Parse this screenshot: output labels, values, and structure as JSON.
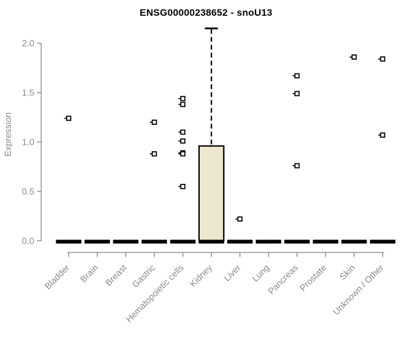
{
  "title": "ENSG00000238652 - snoU13",
  "colors": {
    "axis": "#8a8a8a",
    "tick_label": "#8a8a8a",
    "title": "#000000",
    "box_fill": "#ede7cd",
    "box_stroke": "#000000",
    "zero_bar": "#000000",
    "outlier_stroke": "#000000",
    "outlier_fill": "#ffffff",
    "background": "#ffffff"
  },
  "chart_data": {
    "type": "boxplot",
    "title": "ENSG00000238652 - snoU13",
    "xlabel": "",
    "ylabel": "Expression",
    "ylim": [
      0,
      2.15
    ],
    "yticks": [
      "0.0",
      "0.5",
      "1.0",
      "1.5",
      "2.0"
    ],
    "grid": false,
    "legend": "none",
    "categories": [
      "Bladder",
      "Brain",
      "Breast",
      "Gastric",
      "Hematopoietic cells",
      "Kidney",
      "Liver",
      "Lung",
      "Pancreas",
      "Prostate",
      "Skin",
      "Unknown / Other"
    ],
    "series": [
      {
        "name": "Bladder",
        "median": 0,
        "q1": 0,
        "q3": 0,
        "whisker_low": 0,
        "whisker_high": 0,
        "outliers": [
          1.24
        ]
      },
      {
        "name": "Brain",
        "median": 0,
        "q1": 0,
        "q3": 0,
        "whisker_low": 0,
        "whisker_high": 0,
        "outliers": []
      },
      {
        "name": "Breast",
        "median": 0,
        "q1": 0,
        "q3": 0,
        "whisker_low": 0,
        "whisker_high": 0,
        "outliers": []
      },
      {
        "name": "Gastric",
        "median": 0,
        "q1": 0,
        "q3": 0,
        "whisker_low": 0,
        "whisker_high": 0,
        "outliers": [
          1.2,
          0.88
        ]
      },
      {
        "name": "Hematopoietic cells",
        "median": 0,
        "q1": 0,
        "q3": 0,
        "whisker_low": 0,
        "whisker_high": 0,
        "outliers": [
          1.44,
          1.38,
          1.1,
          1.01,
          0.89,
          0.88,
          0.55
        ]
      },
      {
        "name": "Kidney",
        "median": 0,
        "q1": 0,
        "q3": 0.96,
        "whisker_low": 0,
        "whisker_high": 2.15,
        "outliers": []
      },
      {
        "name": "Liver",
        "median": 0,
        "q1": 0,
        "q3": 0,
        "whisker_low": 0,
        "whisker_high": 0,
        "outliers": [
          0.22
        ]
      },
      {
        "name": "Lung",
        "median": 0,
        "q1": 0,
        "q3": 0,
        "whisker_low": 0,
        "whisker_high": 0,
        "outliers": []
      },
      {
        "name": "Pancreas",
        "median": 0,
        "q1": 0,
        "q3": 0,
        "whisker_low": 0,
        "whisker_high": 0,
        "outliers": [
          1.67,
          1.49,
          0.76
        ]
      },
      {
        "name": "Prostate",
        "median": 0,
        "q1": 0,
        "q3": 0,
        "whisker_low": 0,
        "whisker_high": 0,
        "outliers": []
      },
      {
        "name": "Skin",
        "median": 0,
        "q1": 0,
        "q3": 0,
        "whisker_low": 0,
        "whisker_high": 0,
        "outliers": [
          1.86
        ]
      },
      {
        "name": "Unknown / Other",
        "median": 0,
        "q1": 0,
        "q3": 0,
        "whisker_low": 0,
        "whisker_high": 0,
        "outliers": [
          1.84,
          1.07
        ]
      }
    ]
  }
}
